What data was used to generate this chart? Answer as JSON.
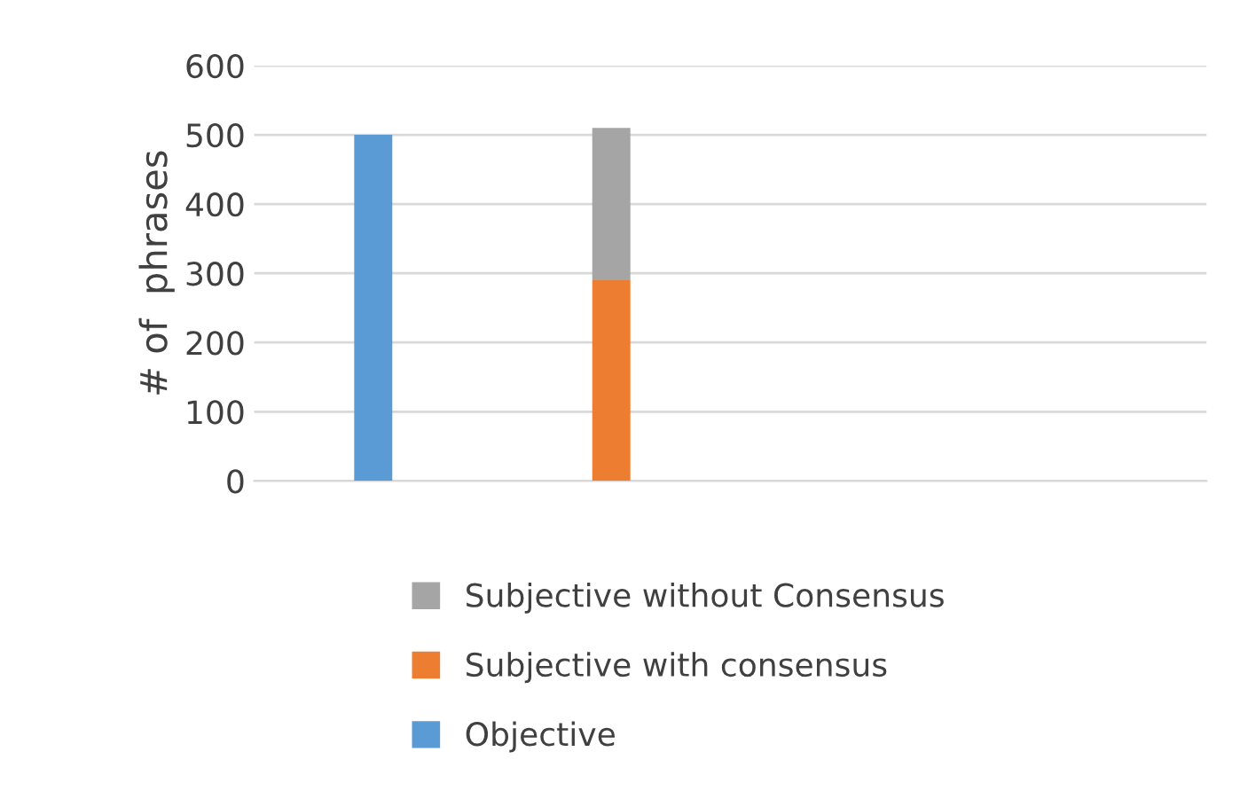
{
  "chart_data": {
    "type": "bar",
    "ylabel": "# of  phrases",
    "categories": [
      null,
      null,
      null,
      null
    ],
    "stacked": true,
    "series": [
      {
        "name": "Objective",
        "color": "#5b9bd5",
        "values": [
          500,
          null,
          null,
          null
        ]
      },
      {
        "name": "Subjective with consensus",
        "color": "#ed7d31",
        "values": [
          null,
          290,
          null,
          null
        ]
      },
      {
        "name": "Subjective without Consensus",
        "color": "#a5a5a5",
        "values": [
          null,
          220,
          null,
          null
        ]
      }
    ],
    "ylim": [
      0,
      600
    ],
    "yticks": [
      0,
      100,
      200,
      300,
      400,
      500,
      600
    ],
    "grid": "y",
    "legend": "bottom",
    "tick_labels": "y"
  }
}
